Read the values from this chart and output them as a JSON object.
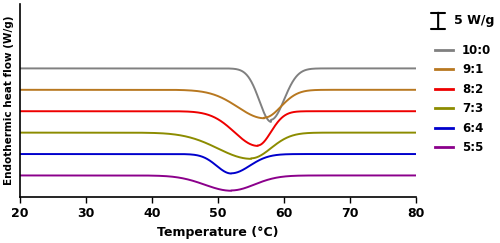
{
  "xlabel": "Temperature (°C)",
  "ylabel": "Endothermic heat flow (W/g)",
  "xlim": [
    20,
    80
  ],
  "background_color": "#ffffff",
  "series": [
    {
      "label": "10:0",
      "color": "#808080"
    },
    {
      "label": "9:1",
      "color": "#b87820"
    },
    {
      "label": "8:2",
      "color": "#ee0000"
    },
    {
      "label": "7:3",
      "color": "#8c8c00"
    },
    {
      "label": "6:4",
      "color": "#0000cc"
    },
    {
      "label": "5:5",
      "color": "#8b008b"
    }
  ],
  "scale_bar_label": "5 W/g",
  "xticks": [
    20,
    30,
    40,
    50,
    60,
    70,
    80
  ],
  "linewidth": 1.4
}
